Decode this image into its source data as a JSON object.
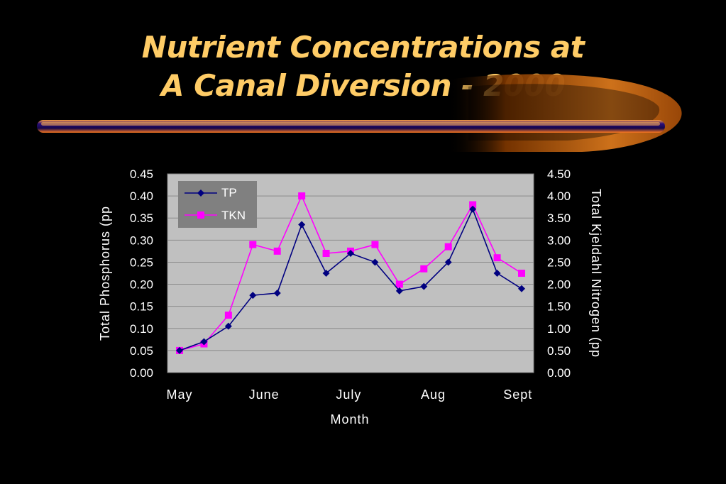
{
  "slide": {
    "title_line1": "Nutrient Concentrations at",
    "title_line2": "A Canal Diversion - 2000"
  },
  "colors": {
    "background": "#000000",
    "title": "#FFCC66",
    "plot_area": "#C0C0C0",
    "legend_box": "#808080",
    "tp_series": "#000080",
    "tkn_series": "#FF00FF",
    "swoosh_orange": "#FF8C1A",
    "swoosh_blue": "#1A0A6E"
  },
  "chart_data": {
    "type": "line",
    "x_labels": [
      "May",
      "June",
      "July",
      "Aug",
      "Sept"
    ],
    "xlabel": "Month",
    "y_left": {
      "label": "Total Phosphorus (pp",
      "ticks": [
        "0.45",
        "0.40",
        "0.35",
        "0.30",
        "0.25",
        "0.20",
        "0.15",
        "0.10",
        "0.05",
        "0.00"
      ],
      "range": [
        0,
        0.45
      ]
    },
    "y_right": {
      "label": "Total Kjeldahl Nitrogen (pp",
      "ticks": [
        "4.50",
        "4.00",
        "3.50",
        "3.00",
        "2.50",
        "2.00",
        "1.50",
        "1.00",
        "0.50",
        "0.00"
      ],
      "range": [
        0,
        4.5
      ]
    },
    "grid": true,
    "legend_position": "top-left",
    "series": [
      {
        "name": "TP",
        "axis": "left",
        "marker": "diamond",
        "values": [
          0.05,
          0.07,
          0.105,
          0.175,
          0.18,
          0.335,
          0.225,
          0.27,
          0.25,
          0.185,
          0.195,
          0.25,
          0.37,
          0.225,
          0.19
        ]
      },
      {
        "name": "TKN",
        "axis": "right",
        "marker": "square",
        "values": [
          0.5,
          0.65,
          1.3,
          2.9,
          2.75,
          4.0,
          2.7,
          2.75,
          2.9,
          2.0,
          2.35,
          2.85,
          3.8,
          2.6,
          2.25
        ]
      }
    ]
  }
}
